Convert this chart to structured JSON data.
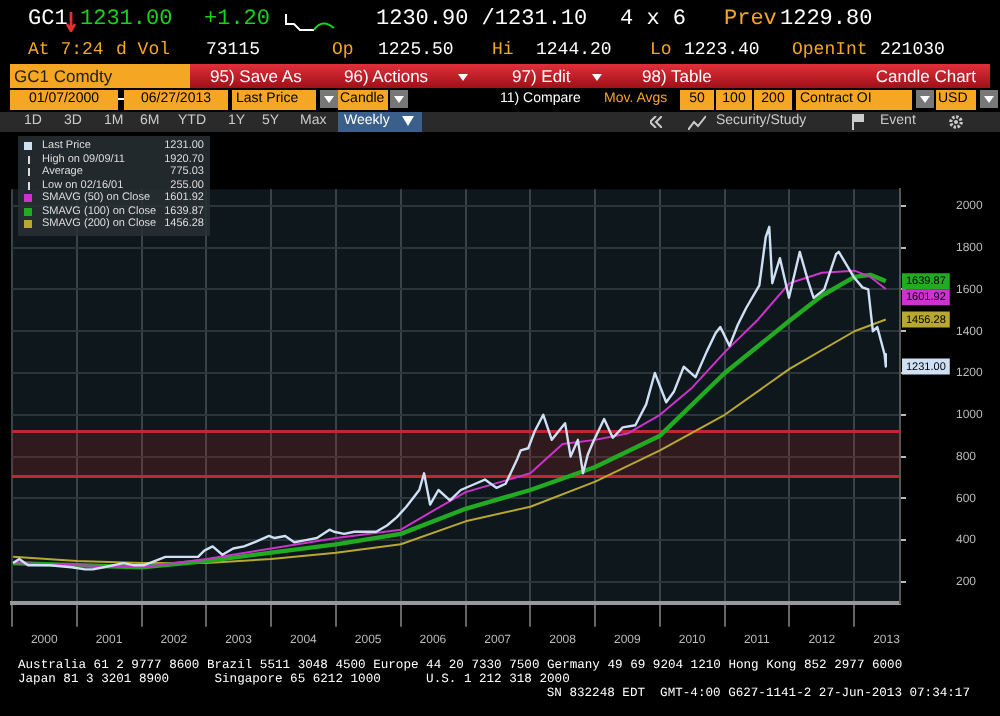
{
  "chart_data": {
    "type": "line",
    "legend": "top left",
    "grid": true,
    "annotations": [
      "GC1",
      "1231.00",
      "+1.20",
      "1230.90 /1231.10",
      "4 x 6",
      "Prev",
      "1229.80",
      "At 7:24",
      "d Vol",
      "73115",
      "Op",
      "1225.50",
      "Hi",
      "1244.20",
      "Lo",
      "1223.40",
      "OpenInt",
      "221030",
      "GC1 Comdty",
      "95) Save As",
      "96) Actions",
      "97) Edit",
      "98) Table",
      "Candle Chart",
      "01/07/2000",
      "06/27/2013",
      "Last Price",
      "Candle",
      "11) Compare",
      "Mov. Avgs",
      "50",
      "100",
      "200",
      "Contract OI",
      "USD",
      "1D",
      "3D",
      "1M",
      "6M",
      "YTD",
      "1Y",
      "5Y",
      "Max",
      "Weekly",
      "Security/Study",
      "Event",
      "High on 09/09/11",
      "1920.70",
      "Average",
      "775.03",
      "Low on 02/16/01",
      "255.00",
      "Australia 61 2 9777 8600 Brazil 5511 3048 4500 Europe 44 20 7330 7500 Germany 49 69 9204 1210 Hong Kong 852 2977 6000",
      "Japan 81 3 3201 8900      Singapore 65 6212 1000      U.S. 1 212 318 2000",
      "SN 832248 EDT  GMT-4:00 G627-1141-2 27-Jun-2013 07:34:17"
    ],
    "xlim": [
      "2000-01-01",
      "2013-09-15"
    ],
    "xticks": [
      {
        "value": "2000-01-01",
        "label": null
      },
      {
        "value": "2000-07-01",
        "label": "2000"
      },
      {
        "value": "2001-01-01",
        "label": null
      },
      {
        "value": "2001-07-01",
        "label": "2001"
      },
      {
        "value": "2002-01-01",
        "label": null
      },
      {
        "value": "2002-07-01",
        "label": "2002"
      },
      {
        "value": "2003-01-01",
        "label": null
      },
      {
        "value": "2003-07-01",
        "label": "2003"
      },
      {
        "value": "2004-01-01",
        "label": null
      },
      {
        "value": "2004-07-01",
        "label": "2004"
      },
      {
        "value": "2005-01-01",
        "label": null
      },
      {
        "value": "2005-07-01",
        "label": "2005"
      },
      {
        "value": "2006-01-01",
        "label": null
      },
      {
        "value": "2006-07-01",
        "label": "2006"
      },
      {
        "value": "2007-01-01",
        "label": null
      },
      {
        "value": "2007-07-01",
        "label": "2007"
      },
      {
        "value": "2008-01-01",
        "label": null
      },
      {
        "value": "2008-07-01",
        "label": "2008"
      },
      {
        "value": "2009-01-01",
        "label": null
      },
      {
        "value": "2009-07-01",
        "label": "2009"
      },
      {
        "value": "2010-01-01",
        "label": null
      },
      {
        "value": "2010-07-01",
        "label": "2010"
      },
      {
        "value": "2011-01-01",
        "label": null
      },
      {
        "value": "2011-07-01",
        "label": "2011"
      },
      {
        "value": "2012-01-01",
        "label": null
      },
      {
        "value": "2012-07-01",
        "label": "2012"
      },
      {
        "value": "2013-01-01",
        "label": null
      },
      {
        "value": "2013-07-01",
        "label": "2013"
      }
    ],
    "ylim": [
      100,
      2080
    ],
    "yticks": [
      200,
      400,
      600,
      800,
      1000,
      1200,
      1400,
      1600,
      1800,
      2000
    ],
    "bands": [
      {
        "axis": "y",
        "from": 705,
        "to": 920,
        "color": "#c0282d"
      }
    ],
    "ref_lines": [
      {
        "axis": "y",
        "value": 705,
        "color": "#c0282d"
      },
      {
        "axis": "y",
        "value": 920,
        "color": "#c0282d"
      }
    ],
    "series": [
      {
        "name": "Last Price",
        "color": "#cfe0f5",
        "x": [
          "2000-01-07",
          "2000-02-11",
          "2000-04-01",
          "2000-08-01",
          "2000-12-01",
          "2001-02-16",
          "2001-04-01",
          "2001-06-01",
          "2001-09-20",
          "2001-11-15",
          "2002-01-15",
          "2002-03-15",
          "2002-05-15",
          "2002-07-15",
          "2002-09-15",
          "2002-11-15",
          "2002-12-20",
          "2003-02-05",
          "2003-04-01",
          "2003-06-01",
          "2003-08-01",
          "2003-10-01",
          "2003-12-20",
          "2004-01-20",
          "2004-03-20",
          "2004-05-10",
          "2004-07-15",
          "2004-09-15",
          "2004-11-25",
          "2004-12-20",
          "2005-02-15",
          "2005-04-15",
          "2005-06-15",
          "2005-08-15",
          "2005-10-15",
          "2005-12-10",
          "2006-02-01",
          "2006-04-15",
          "2006-05-12",
          "2006-06-15",
          "2006-08-01",
          "2006-10-05",
          "2006-12-05",
          "2007-02-25",
          "2007-04-20",
          "2007-06-25",
          "2007-08-15",
          "2007-10-20",
          "2007-11-08",
          "2007-12-20",
          "2008-01-25",
          "2008-03-14",
          "2008-05-01",
          "2008-07-15",
          "2008-08-15",
          "2008-09-25",
          "2008-10-24",
          "2008-11-20",
          "2008-12-20",
          "2009-02-20",
          "2009-04-10",
          "2009-06-05",
          "2009-08-15",
          "2009-10-15",
          "2009-12-03",
          "2010-02-05",
          "2010-03-20",
          "2010-05-15",
          "2010-07-20",
          "2010-09-20",
          "2010-11-10",
          "2010-12-07",
          "2011-01-28",
          "2011-03-15",
          "2011-05-01",
          "2011-07-15",
          "2011-08-20",
          "2011-09-09",
          "2011-09-26",
          "2011-11-08",
          "2011-12-29",
          "2012-02-28",
          "2012-04-15",
          "2012-05-16",
          "2012-07-15",
          "2012-09-20",
          "2012-10-05",
          "2012-12-28",
          "2013-02-15",
          "2013-03-20",
          "2013-04-15",
          "2013-05-10",
          "2013-06-20",
          "2013-06-27"
        ],
        "values": [
          290,
          310,
          280,
          280,
          270,
          260,
          260,
          270,
          290,
          280,
          280,
          300,
          320,
          320,
          320,
          320,
          350,
          370,
          330,
          360,
          370,
          390,
          420,
          410,
          420,
          390,
          400,
          410,
          450,
          440,
          430,
          440,
          440,
          440,
          470,
          510,
          560,
          640,
          720,
          570,
          640,
          590,
          640,
          670,
          690,
          650,
          670,
          790,
          830,
          840,
          920,
          1000,
          880,
          960,
          800,
          880,
          720,
          810,
          870,
          980,
          890,
          940,
          950,
          1050,
          1200,
          1060,
          1110,
          1230,
          1180,
          1300,
          1390,
          1420,
          1330,
          1430,
          1510,
          1620,
          1850,
          1900,
          1630,
          1750,
          1560,
          1780,
          1640,
          1560,
          1600,
          1770,
          1780,
          1660,
          1610,
          1600,
          1400,
          1420,
          1290,
          1231
        ],
        "value_labels": [
          null,
          null,
          null,
          null,
          null,
          null,
          null,
          null,
          null,
          null,
          null,
          null,
          null,
          null,
          null,
          null,
          null,
          null,
          null,
          null,
          null,
          null,
          null,
          null,
          null,
          null,
          null,
          null,
          null,
          null,
          null,
          null,
          null,
          null,
          null,
          null,
          null,
          null,
          null,
          null,
          null,
          null,
          null,
          null,
          null,
          null,
          null,
          null,
          null,
          null,
          null,
          null,
          null,
          null,
          null,
          null,
          null,
          null,
          null,
          null,
          null,
          null,
          null,
          null,
          null,
          null,
          null,
          null,
          null,
          null,
          null,
          null,
          null,
          null,
          null,
          null,
          null,
          null,
          null,
          null,
          null,
          null,
          null,
          null,
          null,
          null,
          null,
          null,
          null,
          null,
          null,
          null,
          null,
          "1231.00"
        ]
      },
      {
        "name": "SMAVG (50) on Close",
        "color": "#cc33cc",
        "x": [
          "2000-01-07",
          "2001-01-01",
          "2002-01-01",
          "2003-01-01",
          "2004-01-01",
          "2005-01-01",
          "2006-01-01",
          "2006-07-01",
          "2007-01-01",
          "2008-01-01",
          "2008-07-01",
          "2009-01-01",
          "2009-07-01",
          "2010-01-01",
          "2010-07-01",
          "2011-01-01",
          "2011-07-01",
          "2012-01-01",
          "2012-07-01",
          "2013-01-01",
          "2013-04-01",
          "2013-06-27"
        ],
        "values": [
          290,
          280,
          270,
          310,
          360,
          410,
          450,
          540,
          630,
          720,
          860,
          880,
          910,
          1000,
          1130,
          1300,
          1450,
          1630,
          1680,
          1690,
          1660,
          1601.92
        ],
        "value_labels": [
          null,
          null,
          null,
          null,
          null,
          null,
          null,
          null,
          null,
          null,
          null,
          null,
          null,
          null,
          null,
          null,
          null,
          null,
          null,
          null,
          null,
          "1601.92"
        ]
      },
      {
        "name": "SMAVG (100) on Close",
        "color": "#22aa22",
        "x": [
          "2000-01-07",
          "2001-01-01",
          "2002-01-01",
          "2003-01-01",
          "2004-01-01",
          "2005-01-01",
          "2006-01-01",
          "2007-01-01",
          "2008-01-01",
          "2009-01-01",
          "2010-01-01",
          "2011-01-01",
          "2012-01-01",
          "2012-07-01",
          "2013-01-01",
          "2013-04-01",
          "2013-06-27"
        ],
        "values": [
          290,
          280,
          270,
          300,
          340,
          380,
          430,
          550,
          640,
          750,
          900,
          1200,
          1450,
          1570,
          1660,
          1670,
          1639.87
        ],
        "value_labels": [
          null,
          null,
          null,
          null,
          null,
          null,
          null,
          null,
          null,
          null,
          null,
          null,
          null,
          null,
          null,
          null,
          "1639.87"
        ]
      },
      {
        "name": "SMAVG (200) on Close",
        "color": "#b8a830",
        "x": [
          "2000-01-07",
          "2001-01-01",
          "2002-01-01",
          "2003-01-01",
          "2004-01-01",
          "2005-01-01",
          "2006-01-01",
          "2007-01-01",
          "2008-01-01",
          "2009-01-01",
          "2010-01-01",
          "2011-01-01",
          "2012-01-01",
          "2013-01-01",
          "2013-06-27"
        ],
        "values": [
          320,
          300,
          290,
          290,
          310,
          340,
          380,
          490,
          560,
          680,
          830,
          1000,
          1220,
          1400,
          1456.28
        ],
        "value_labels": [
          null,
          null,
          null,
          null,
          null,
          null,
          null,
          null,
          null,
          null,
          null,
          null,
          null,
          null,
          "1456.28"
        ]
      }
    ]
  }
}
